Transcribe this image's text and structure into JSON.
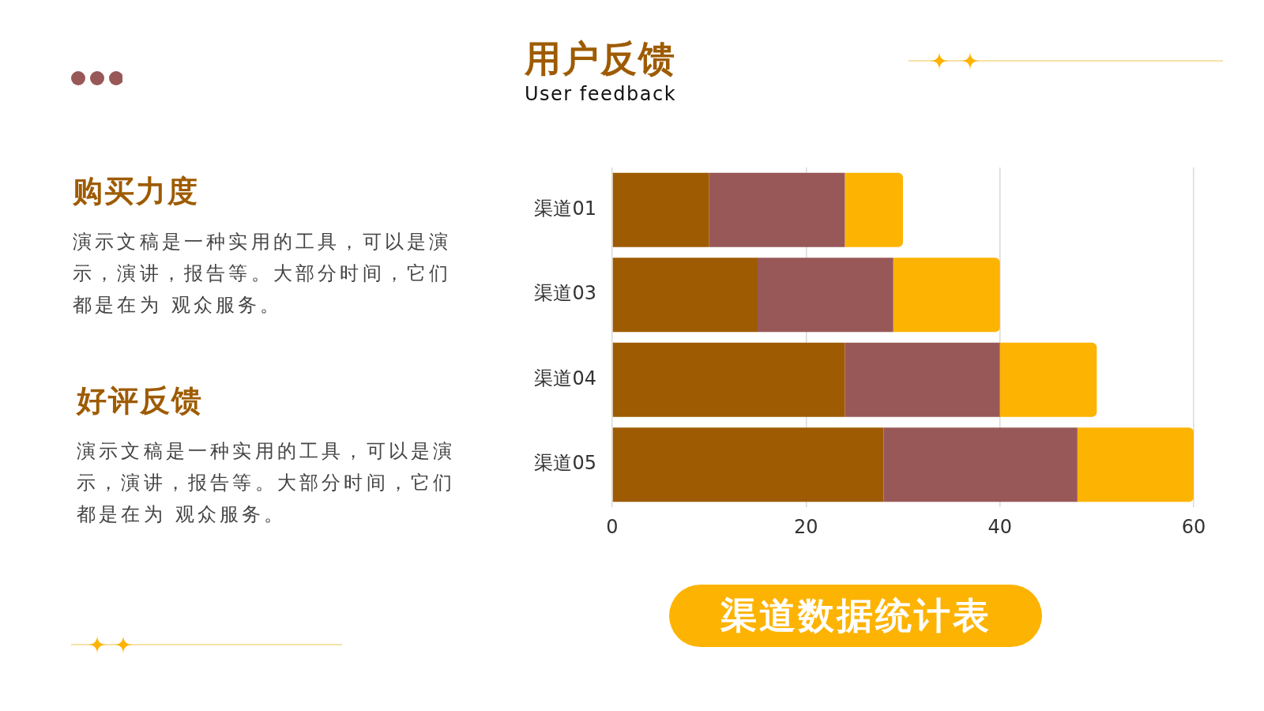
{
  "chart_data": {
    "type": "bar",
    "orientation": "horizontal",
    "stacked": true,
    "title": "用户反馈",
    "subtitle": "User feedback",
    "categories": [
      "渠道01",
      "渠道03",
      "渠道04",
      "渠道05"
    ],
    "series": [
      {
        "color": "#9e5b02",
        "values": [
          10,
          15,
          24,
          28
        ]
      },
      {
        "color": "#985858",
        "values": [
          14,
          14,
          16,
          20
        ]
      },
      {
        "color": "#fdb302",
        "values": [
          6,
          11,
          10,
          12
        ]
      }
    ],
    "xlim": [
      0,
      60
    ],
    "xticks": [
      0,
      20,
      40,
      60
    ],
    "grid": "x",
    "legend": false,
    "annotations": [
      "购买力度",
      "演示文稿是一种实用的工具，可以是演示，演讲，报告等。大部分时间，它们都是在为 观众服务。",
      "好评反馈",
      "演示文稿是一种实用的工具，可以是演示，演讲，报告等。大部分时间，它们都是在为 观众服务。",
      "渠道数据统计表"
    ]
  }
}
